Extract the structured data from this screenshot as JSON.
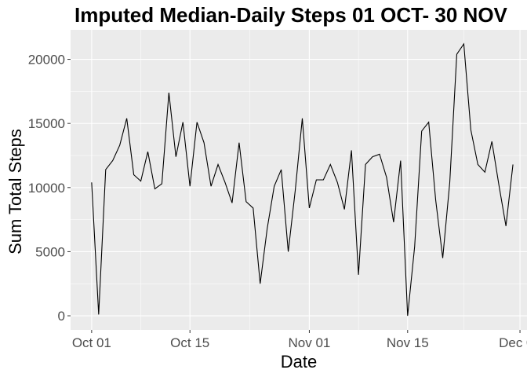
{
  "chart_data": {
    "type": "line",
    "title": "Imputed Median-Daily Steps 01 OCT- 30 NOV",
    "xlabel": "Date",
    "ylabel": "Sum Total Steps",
    "x_ticks": [
      "Oct 01",
      "Oct 15",
      "Nov 01",
      "Nov 15",
      "Dec 01"
    ],
    "y_ticks": [
      "0",
      "5000",
      "10000",
      "15000",
      "20000"
    ],
    "xlim": [
      "2012-09-28",
      "2012-12-02"
    ],
    "ylim": [
      -1100,
      22300
    ],
    "grid": true,
    "legend": "none",
    "colors": {
      "panel": "#EBEBEB",
      "grid_major": "#FFFFFF",
      "line": "#000000"
    },
    "series": [
      {
        "x": [
          "2012-10-01",
          "2012-10-02",
          "2012-10-03",
          "2012-10-04",
          "2012-10-05",
          "2012-10-06",
          "2012-10-07",
          "2012-10-08",
          "2012-10-09",
          "2012-10-10",
          "2012-10-11",
          "2012-10-12",
          "2012-10-13",
          "2012-10-14",
          "2012-10-15",
          "2012-10-16",
          "2012-10-17",
          "2012-10-18",
          "2012-10-19",
          "2012-10-20",
          "2012-10-21",
          "2012-10-22",
          "2012-10-23",
          "2012-10-24",
          "2012-10-25",
          "2012-10-26",
          "2012-10-27",
          "2012-10-28",
          "2012-10-29",
          "2012-10-30",
          "2012-10-31",
          "2012-11-01",
          "2012-11-02",
          "2012-11-03",
          "2012-11-04",
          "2012-11-05",
          "2012-11-06",
          "2012-11-07",
          "2012-11-08",
          "2012-11-09",
          "2012-11-10",
          "2012-11-11",
          "2012-11-12",
          "2012-11-13",
          "2012-11-14",
          "2012-11-15",
          "2012-11-16",
          "2012-11-17",
          "2012-11-18",
          "2012-11-19",
          "2012-11-20",
          "2012-11-21",
          "2012-11-22",
          "2012-11-23",
          "2012-11-24",
          "2012-11-25",
          "2012-11-26",
          "2012-11-27",
          "2012-11-28",
          "2012-11-29",
          "2012-11-30"
        ],
        "values": [
          10400,
          100,
          11400,
          12100,
          13300,
          15400,
          11000,
          10500,
          12800,
          9900,
          10300,
          17400,
          12400,
          15100,
          10100,
          15100,
          13500,
          10100,
          11800,
          10400,
          8800,
          13500,
          8900,
          8400,
          2500,
          6800,
          10100,
          11400,
          5000,
          9800,
          15400,
          8400,
          10600,
          10600,
          11800,
          10400,
          8300,
          12900,
          3200,
          11800,
          12400,
          12600,
          10800,
          7300,
          12100,
          0,
          5400,
          14400,
          15100,
          9000,
          4500,
          10400,
          20400,
          21200,
          14500,
          11800,
          11200,
          13600,
          10200,
          7000,
          11800
        ]
      }
    ]
  }
}
